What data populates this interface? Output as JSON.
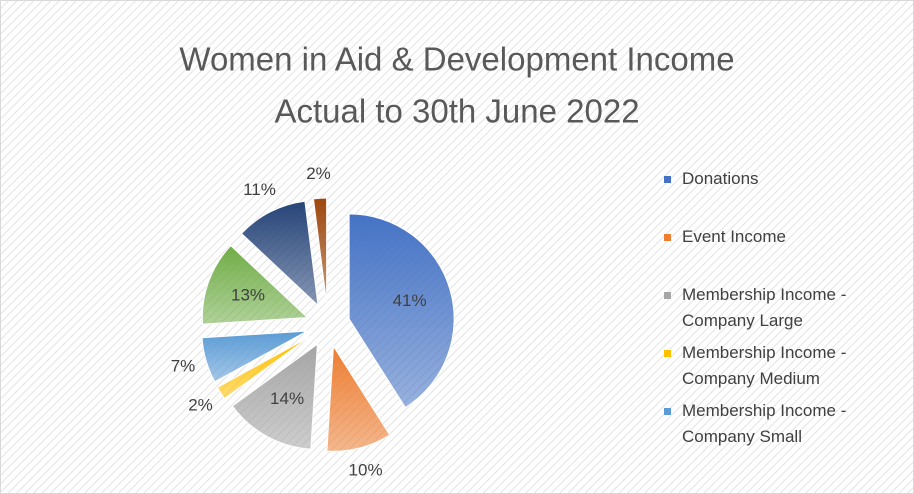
{
  "chart_data": {
    "type": "pie",
    "title": [
      "Women in Aid & Development Income",
      "Actual to 30th June 2022"
    ],
    "categories": [
      "Donations",
      "Event Income",
      "Membership Income - Company Large",
      "Membership Income - Company Medium",
      "Membership Income - Company Small",
      null,
      null,
      null
    ],
    "values": [
      41,
      10,
      14,
      2,
      7,
      13,
      11,
      2
    ],
    "value_labels": [
      "41%",
      "10%",
      "14%",
      "2%",
      "7%",
      "13%",
      "11%",
      "2%"
    ],
    "colors": [
      "#4472c4",
      "#ed7d31",
      "#a5a5a5",
      "#ffc000",
      "#5b9bd5",
      "#70ad47",
      "#264478",
      "#9e480e"
    ],
    "legend": "right"
  }
}
